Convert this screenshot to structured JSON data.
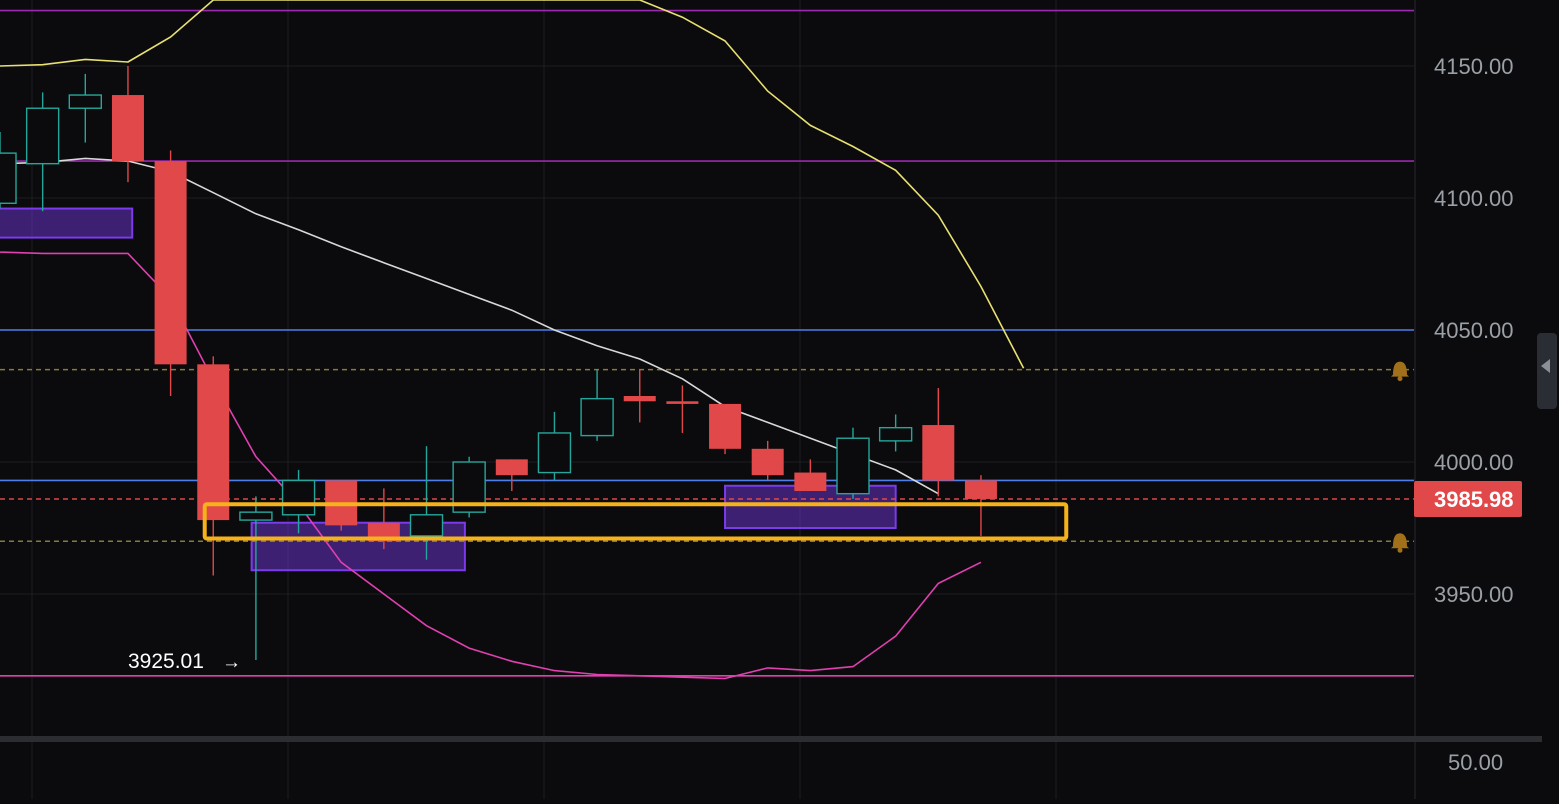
{
  "chart_data": {
    "type": "candlestick",
    "price_axis": {
      "ticks": [
        "4150.00",
        "4100.00",
        "4050.00",
        "4000.00",
        "3950.00"
      ],
      "ylim": [
        3898,
        4173
      ]
    },
    "indicator_pane": {
      "ticks": [
        "50.00"
      ]
    },
    "current_price": {
      "value": 3985.98,
      "label": "3985.98",
      "color": "#e0484a"
    },
    "low_marker": {
      "value": 3925.01,
      "label": "3925.01",
      "arrow": "→"
    },
    "candles": [
      {
        "o": 4098,
        "h": 4125,
        "l": 4096,
        "c": 4117
      },
      {
        "o": 4113,
        "h": 4140,
        "l": 4095,
        "c": 4134
      },
      {
        "o": 4134,
        "h": 4147,
        "l": 4121,
        "c": 4139
      },
      {
        "o": 4139,
        "h": 4150,
        "l": 4106,
        "c": 4114
      },
      {
        "o": 4114,
        "h": 4118,
        "l": 4025,
        "c": 4037
      },
      {
        "o": 4037,
        "h": 4040,
        "l": 3957,
        "c": 3978
      },
      {
        "o": 3978,
        "h": 3987,
        "l": 3925,
        "c": 3981
      },
      {
        "o": 3980,
        "h": 3997,
        "l": 3973,
        "c": 3993
      },
      {
        "o": 3993,
        "h": 3993,
        "l": 3974,
        "c": 3976
      },
      {
        "o": 3977,
        "h": 3990,
        "l": 3967,
        "c": 3970
      },
      {
        "o": 3972,
        "h": 4006,
        "l": 3963,
        "c": 3980
      },
      {
        "o": 3981,
        "h": 4002,
        "l": 3979,
        "c": 4000
      },
      {
        "o": 4001,
        "h": 4001,
        "l": 3989,
        "c": 3995
      },
      {
        "o": 3996,
        "h": 4019,
        "l": 3993,
        "c": 4011
      },
      {
        "o": 4010,
        "h": 4035,
        "l": 4008,
        "c": 4024
      },
      {
        "o": 4025,
        "h": 4035,
        "l": 4015,
        "c": 4023
      },
      {
        "o": 4023,
        "h": 4029,
        "l": 4011,
        "c": 4022
      },
      {
        "o": 4022,
        "h": 4021,
        "l": 4003,
        "c": 4005
      },
      {
        "o": 4005,
        "h": 4008,
        "l": 3993,
        "c": 3995
      },
      {
        "o": 3996,
        "h": 4001,
        "l": 3990,
        "c": 3989
      },
      {
        "o": 3988,
        "h": 4013,
        "l": 3986,
        "c": 4009
      },
      {
        "o": 4008,
        "h": 4018,
        "l": 4004,
        "c": 4013
      },
      {
        "o": 4014,
        "h": 4028,
        "l": 3987,
        "c": 3993
      },
      {
        "o": 3993,
        "h": 3995,
        "l": 3972,
        "c": 3986
      }
    ],
    "colors": {
      "up": "#26a69a",
      "down": "#e0484a"
    },
    "horizontal_lines": [
      {
        "value": 4171,
        "color": "#9c27b0",
        "style": "solid"
      },
      {
        "value": 4114,
        "color": "#9c27b0",
        "style": "solid"
      },
      {
        "value": 4050,
        "color": "#4f7ee8",
        "style": "solid"
      },
      {
        "value": 3993,
        "color": "#4f7ee8",
        "style": "solid"
      },
      {
        "value": 3919,
        "color": "#e040b0",
        "style": "solid"
      },
      {
        "value": 4035,
        "color": "#8a7a3a",
        "style": "dashed"
      },
      {
        "value": 3970,
        "color": "#8a7a3a",
        "style": "dashed"
      },
      {
        "value": 3985.98,
        "color": "#e0484a",
        "style": "dashed"
      }
    ],
    "alerts": [
      {
        "value": 4035,
        "icon": "bell-icon"
      },
      {
        "value": 3970,
        "icon": "bell-icon"
      }
    ],
    "zones": [
      {
        "x0": -0.5,
        "x1": 3.1,
        "top": 4096,
        "bottom": 4085,
        "color": "#7c3aed"
      },
      {
        "x0": 5.9,
        "x1": 10.9,
        "top": 3977,
        "bottom": 3959,
        "color": "#7c3aed"
      },
      {
        "x0": 17.0,
        "x1": 21.0,
        "top": 3991,
        "bottom": 3975,
        "color": "#7c3aed"
      }
    ],
    "highlight_box": {
      "x0": 4.8,
      "x1": 25.0,
      "top": 3984,
      "bottom": 3971,
      "color": "#f5b21b"
    },
    "lines": [
      {
        "name": "",
        "color": "#e8e070",
        "points": [
          [
            -0.5,
            4150
          ],
          [
            0,
            4150
          ],
          [
            1,
            4150.5
          ],
          [
            2,
            4152.5
          ],
          [
            3,
            4151.5
          ],
          [
            4,
            4161
          ],
          [
            5,
            4175
          ],
          [
            15,
            4175
          ],
          [
            16,
            4168.5
          ],
          [
            17,
            4159.5
          ],
          [
            18,
            4140.5
          ],
          [
            19,
            4127.5
          ],
          [
            20,
            4119.5
          ],
          [
            21,
            4110.5
          ],
          [
            22,
            4093.5
          ],
          [
            23,
            4066.5
          ],
          [
            24,
            4035.5
          ]
        ]
      },
      {
        "name": "",
        "color": "#d8d8d8",
        "points": [
          [
            -0.5,
            4113
          ],
          [
            0,
            4113
          ],
          [
            1,
            4113.5
          ],
          [
            2,
            4115
          ],
          [
            3,
            4114
          ],
          [
            4,
            4110
          ],
          [
            5,
            4102
          ],
          [
            6,
            4094
          ],
          [
            7,
            4088
          ],
          [
            8,
            4081.5
          ],
          [
            9,
            4075.5
          ],
          [
            10,
            4069.5
          ],
          [
            11,
            4063.5
          ],
          [
            12,
            4057.5
          ],
          [
            13,
            4050
          ],
          [
            14,
            4044
          ],
          [
            15,
            4039
          ],
          [
            16,
            4031.5
          ],
          [
            17,
            4021
          ],
          [
            18,
            4015
          ],
          [
            19,
            4009
          ],
          [
            20,
            4003
          ],
          [
            21,
            3997
          ],
          [
            22,
            3988
          ]
        ]
      },
      {
        "name": "",
        "color": "#e040b0",
        "points": [
          [
            -0.5,
            4080
          ],
          [
            0,
            4079.5
          ],
          [
            1,
            4079
          ],
          [
            2,
            4079
          ],
          [
            3,
            4079
          ],
          [
            4,
            4062
          ],
          [
            5,
            4031
          ],
          [
            6,
            4002
          ],
          [
            7,
            3984
          ],
          [
            8,
            3962
          ],
          [
            9,
            3950
          ],
          [
            10,
            3938
          ],
          [
            11,
            3929.5
          ],
          [
            12,
            3924.5
          ],
          [
            13,
            3921
          ],
          [
            14,
            3919.5
          ],
          [
            15,
            3919
          ],
          [
            16,
            3918.5
          ],
          [
            17,
            3918
          ],
          [
            18,
            3922
          ],
          [
            19,
            3921
          ],
          [
            20,
            3922.5
          ],
          [
            21,
            3934
          ],
          [
            22,
            3954
          ],
          [
            23,
            3962
          ]
        ]
      }
    ]
  }
}
